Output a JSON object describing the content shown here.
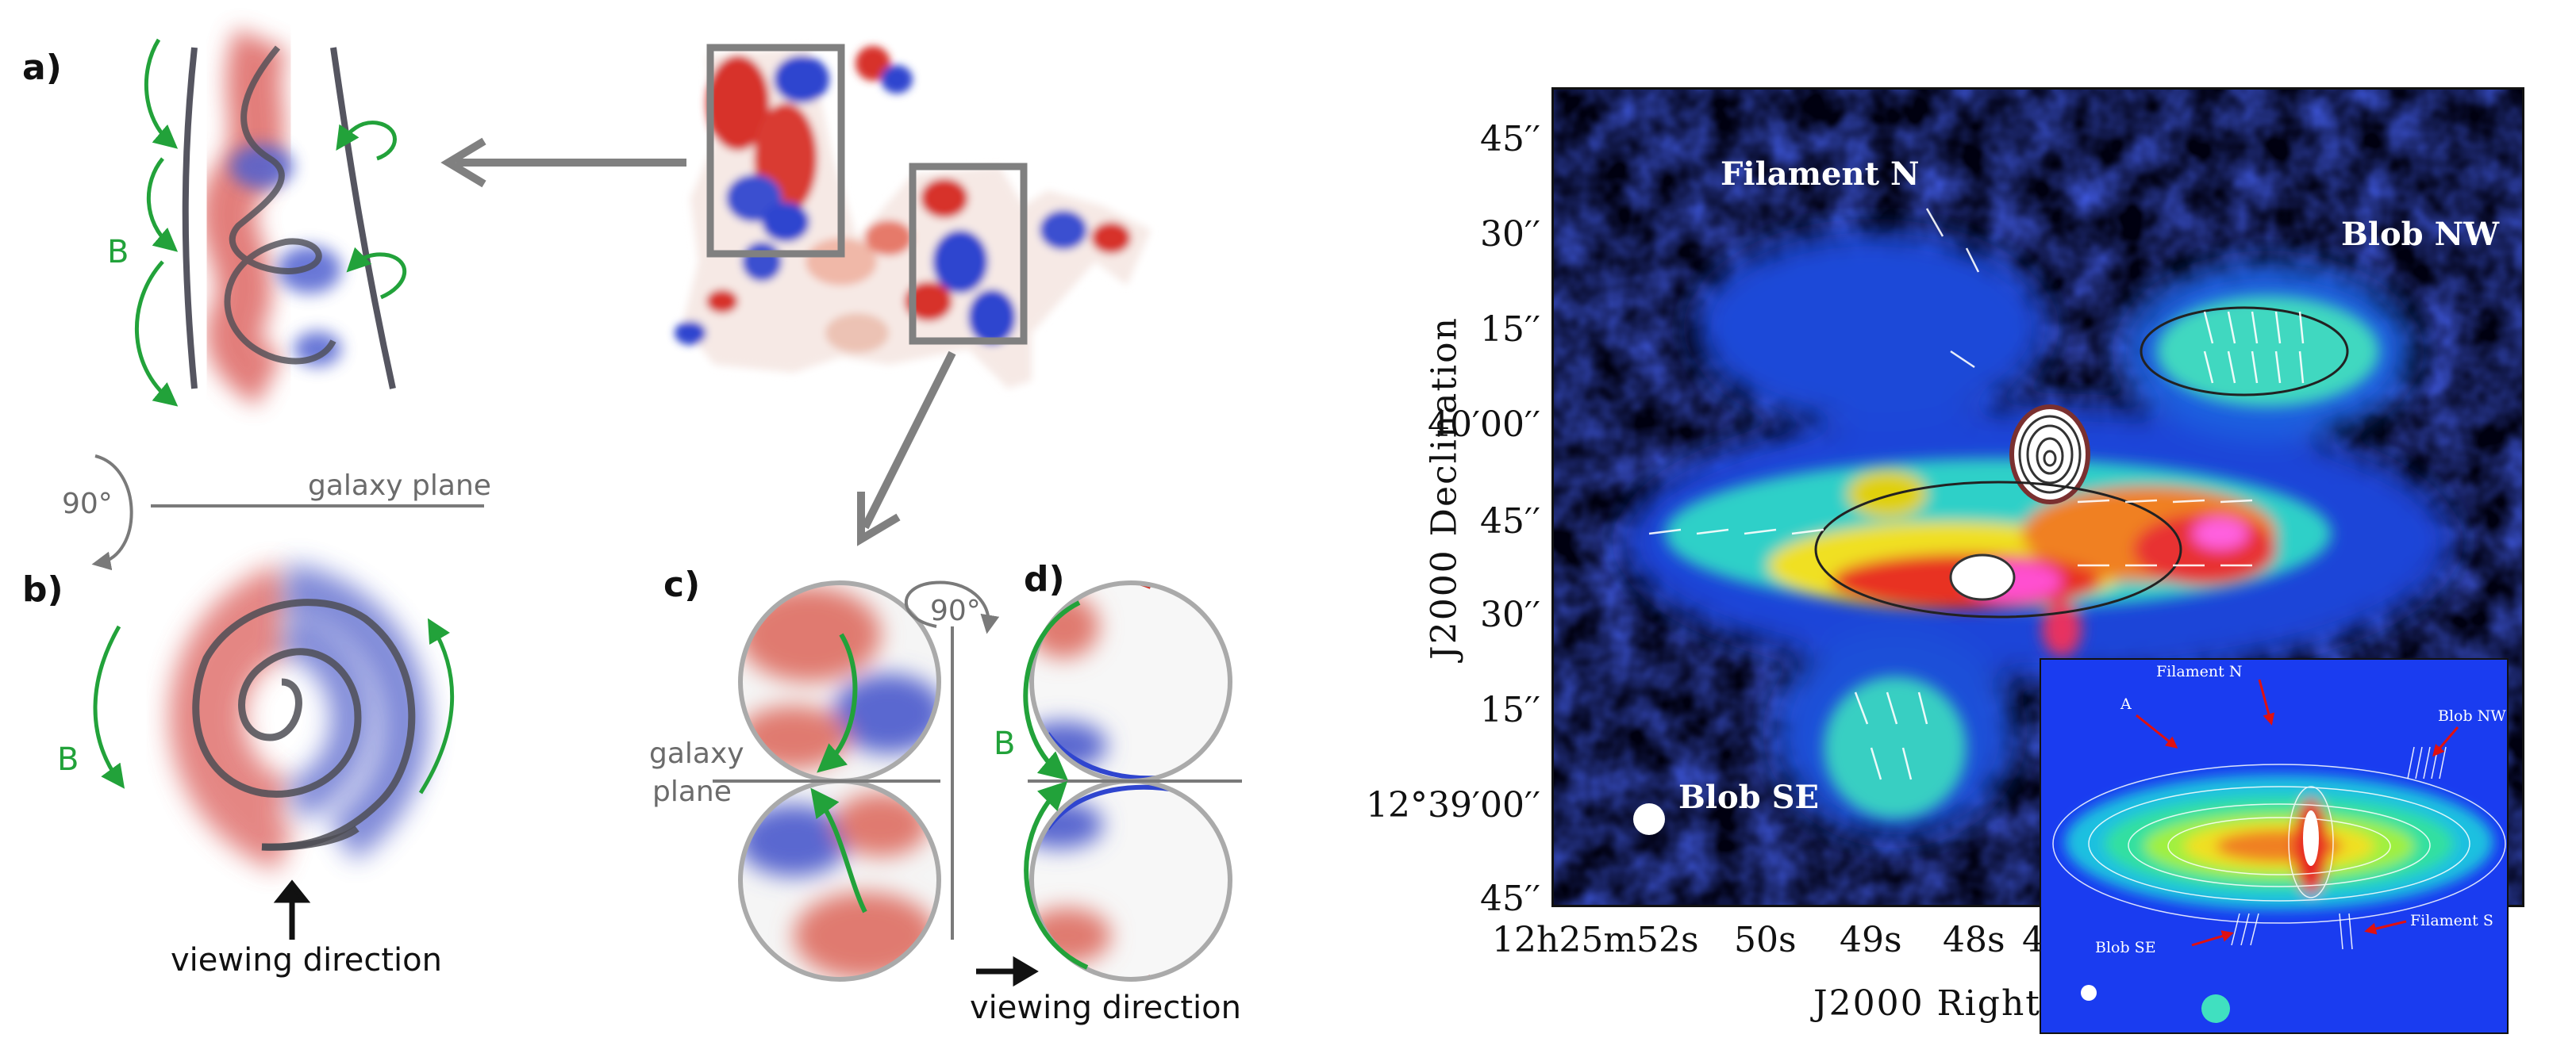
{
  "left": {
    "panel_a": "a)",
    "panel_b": "b)",
    "panel_c": "c)",
    "panel_d": "d)",
    "b_label_a": "B",
    "b_label_b": "B",
    "b_label_d": "B",
    "rot_a": "90°",
    "rot_c": "90°",
    "galaxy_plane_a": "galaxy plane",
    "galaxy_plane_c_1": "galaxy",
    "galaxy_plane_c_2": "plane",
    "viewing_b": "viewing direction",
    "viewing_d": "viewing direction"
  },
  "map": {
    "y_axis_label": "J2000 Declination",
    "x_axis_label": "J2000 Right",
    "y_ticks": [
      "45′′",
      "30′′",
      "15′′",
      "40′00′′",
      "45′′",
      "30′′",
      "15′′",
      "12°39′00′′",
      "45′′"
    ],
    "x_ticks": [
      "12h25m52s",
      "50s",
      "49s",
      "48s",
      "4"
    ],
    "labels": {
      "filament_n": "Filament N",
      "blob_nw": "Blob NW",
      "blob_se": "Blob SE"
    },
    "inset": {
      "filament_n": "Filament N",
      "blob_nw": "Blob NW",
      "a": "A",
      "blob_se": "Blob SE",
      "filament_s": "Filament S"
    }
  }
}
